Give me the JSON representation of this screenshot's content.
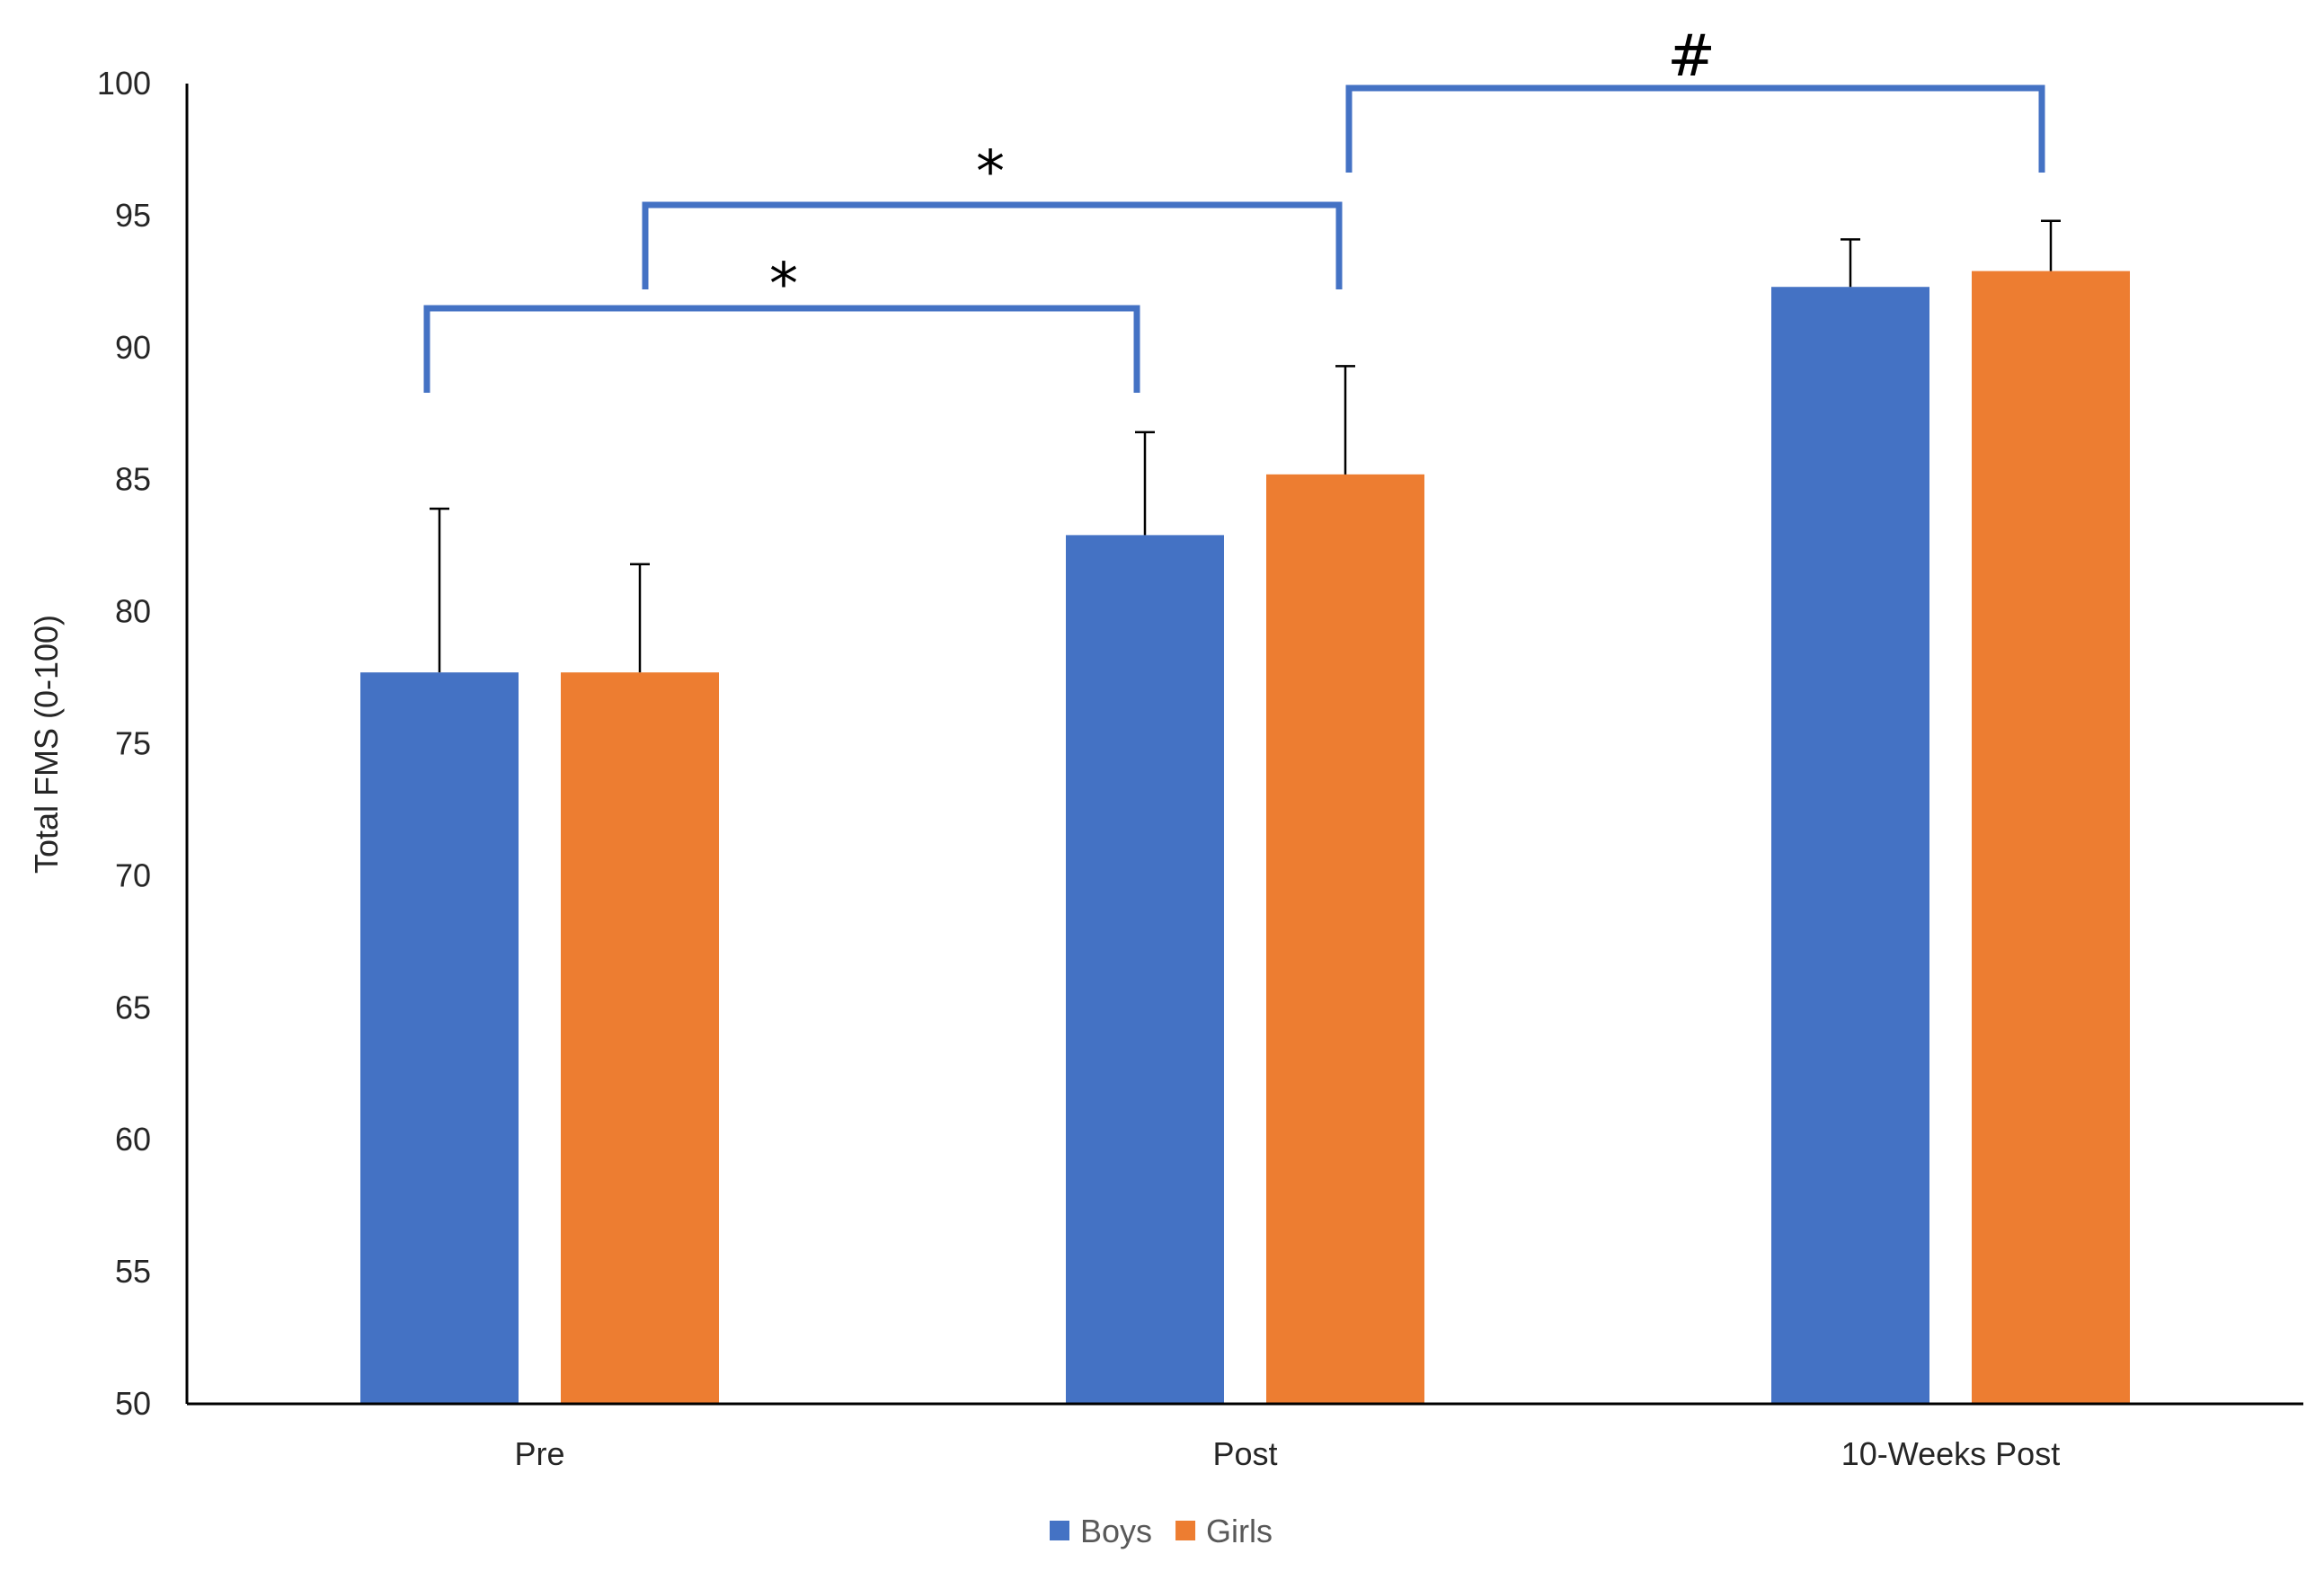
{
  "chart_data": {
    "type": "bar",
    "ylabel": "Total FMS (0-100)",
    "xlabel": "",
    "ylim": [
      50,
      100
    ],
    "yticks": [
      50,
      55,
      60,
      65,
      70,
      75,
      80,
      85,
      90,
      95,
      100
    ],
    "categories": [
      "Pre",
      "Post",
      "10-Weeks Post"
    ],
    "series": [
      {
        "name": "Boys",
        "color": "#4472c4",
        "values": [
          77.7,
          82.9,
          92.3
        ],
        "error": [
          6.2,
          3.9,
          1.8
        ]
      },
      {
        "name": "Girls",
        "color": "#ed7d31",
        "values": [
          77.7,
          85.2,
          92.9
        ],
        "error": [
          4.1,
          4.1,
          1.9
        ]
      }
    ],
    "legend": {
      "position": "bottom"
    },
    "grid": false,
    "annotations": [
      {
        "label": "*",
        "from_category": 0,
        "to_category": 1
      },
      {
        "label": "*",
        "from_category": 0,
        "to_category": 1
      },
      {
        "label": "#",
        "from_category": 1,
        "to_category": 2
      }
    ]
  }
}
